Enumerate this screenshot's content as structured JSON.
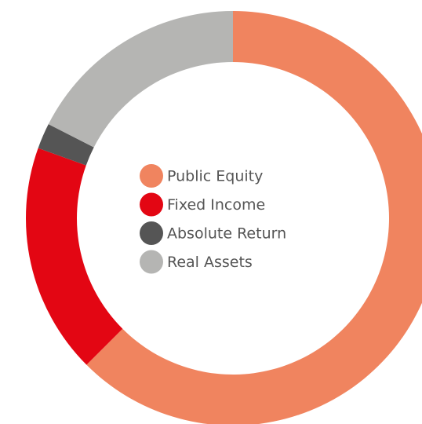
{
  "chart_data": {
    "type": "donut",
    "series": [
      {
        "name": "Public Equity",
        "color": "#f0845f",
        "values": [
          62.5
        ]
      },
      {
        "name": "Fixed Income",
        "color": "#e30613",
        "values": [
          18
        ]
      },
      {
        "name": "Absolute Return",
        "color": "#555555",
        "values": [
          2
        ]
      },
      {
        "name": "Real Assets",
        "color": "#b5b5b3",
        "values": [
          17.5
        ]
      }
    ]
  }
}
